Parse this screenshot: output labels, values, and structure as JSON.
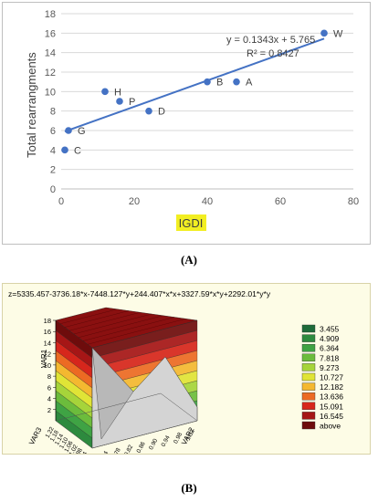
{
  "chart_data": [
    {
      "type": "scatter",
      "xlabel": "IGDI",
      "ylabel": "Total rearrangments",
      "xlim": [
        0,
        80
      ],
      "ylim": [
        0,
        18
      ],
      "xticks": [
        0,
        20,
        40,
        60,
        80
      ],
      "yticks": [
        0,
        2,
        4,
        6,
        8,
        10,
        12,
        14,
        16,
        18
      ],
      "grid": "horizontal",
      "marker_color": "#4472c4",
      "points": [
        {
          "label": "W",
          "x": 72,
          "y": 16
        },
        {
          "label": "A",
          "x": 48,
          "y": 11
        },
        {
          "label": "B",
          "x": 40,
          "y": 11
        },
        {
          "label": "H",
          "x": 12,
          "y": 10
        },
        {
          "label": "P",
          "x": 16,
          "y": 9
        },
        {
          "label": "D",
          "x": 24,
          "y": 8
        },
        {
          "label": "G",
          "x": 2,
          "y": 6
        },
        {
          "label": "C",
          "x": 1,
          "y": 4
        }
      ],
      "trendline": {
        "slope": 0.1343,
        "intercept": 5.765,
        "x_range": [
          1,
          72
        ],
        "equation": "y = 0.1343x + 5.765",
        "r2": "R² = 0.8427"
      }
    },
    {
      "type": "surface",
      "title": "z=5335.457-3736.18*x-7448.127*y+244.407*x*x+3327.59*x*y+2292.01*y*y",
      "zlabel": "VAR1",
      "xlabel": "VAR2",
      "ylabel": "VAR3",
      "zticks": [
        2,
        4,
        6,
        8,
        10,
        12,
        14,
        16,
        18
      ],
      "var2_ticks": [
        "0.70",
        "0.74",
        "0.78",
        "0.82",
        "0.86",
        "0.90",
        "0.94",
        "0.98",
        "1.02"
      ],
      "var3_ticks": [
        "0.94",
        "0.98",
        "1.02",
        "1.06",
        "1.10",
        "1.14",
        "1.18",
        "1.22"
      ],
      "legend": [
        {
          "label": "3.455",
          "color": "#1e6b3a"
        },
        {
          "label": "4.909",
          "color": "#2d8a3e"
        },
        {
          "label": "6.364",
          "color": "#3fa344"
        },
        {
          "label": "7.818",
          "color": "#6cbc3c"
        },
        {
          "label": "9.273",
          "color": "#a6d43a"
        },
        {
          "label": "10.727",
          "color": "#e0e436"
        },
        {
          "label": "12.182",
          "color": "#f4b830"
        },
        {
          "label": "13.636",
          "color": "#ec6a23"
        },
        {
          "label": "15.091",
          "color": "#d6261c"
        },
        {
          "label": "16.545",
          "color": "#a61616"
        },
        {
          "label": "above",
          "color": "#6e0c0c"
        }
      ]
    }
  ],
  "captions": {
    "a": "(A)",
    "b": "(B)"
  }
}
